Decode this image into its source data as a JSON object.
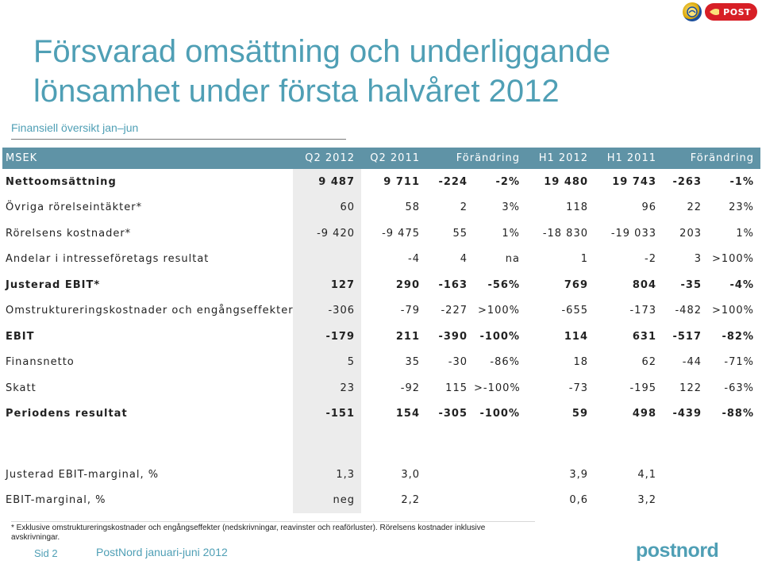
{
  "brand": {
    "post_logo_text": "POST"
  },
  "title": "Försvarad omsättning och underliggande lönsamhet under första halvåret 2012",
  "subtitle": "Finansiell översikt jan–jun",
  "table": {
    "headers": [
      "MSEK",
      "Q2 2012",
      "Q2 2011",
      "Förändring",
      "",
      "H1 2012",
      "H1 2011",
      "Förändring",
      ""
    ],
    "rows": [
      {
        "label": "Nettoomsättning",
        "bold": true,
        "cells": [
          "9 487",
          "9 711",
          "-224",
          "-2%",
          "19 480",
          "19 743",
          "-263",
          "-1%"
        ]
      },
      {
        "label": "Övriga rörelseintäkter*",
        "bold": false,
        "cells": [
          "60",
          "58",
          "2",
          "3%",
          "118",
          "96",
          "22",
          "23%"
        ]
      },
      {
        "label": "Rörelsens kostnader*",
        "bold": false,
        "cells": [
          "-9 420",
          "-9 475",
          "55",
          "1%",
          "-18 830",
          "-19 033",
          "203",
          "1%"
        ]
      },
      {
        "label": "Andelar i intresseföretags resultat",
        "bold": false,
        "cells": [
          "",
          "-4",
          "4",
          "na",
          "1",
          "-2",
          "3",
          ">100%"
        ]
      },
      {
        "label": "Justerad EBIT*",
        "bold": true,
        "cells": [
          "127",
          "290",
          "-163",
          "-56%",
          "769",
          "804",
          "-35",
          "-4%"
        ]
      },
      {
        "label": "Omstruktureringskostnader och engångseffekter",
        "bold": false,
        "cells": [
          "-306",
          "-79",
          "-227",
          ">100%",
          "-655",
          "-173",
          "-482",
          ">100%"
        ]
      },
      {
        "label": "EBIT",
        "bold": true,
        "cells": [
          "-179",
          "211",
          "-390",
          "-100%",
          "114",
          "631",
          "-517",
          "-82%"
        ]
      },
      {
        "label": "Finansnetto",
        "bold": false,
        "cells": [
          "5",
          "35",
          "-30",
          "-86%",
          "18",
          "62",
          "-44",
          "-71%"
        ]
      },
      {
        "label": "Skatt",
        "bold": false,
        "cells": [
          "23",
          "-92",
          "115",
          ">-100%",
          "-73",
          "-195",
          "122",
          "-63%"
        ]
      },
      {
        "label": "Periodens resultat",
        "bold": true,
        "cells": [
          "-151",
          "154",
          "-305",
          "-100%",
          "59",
          "498",
          "-439",
          "-88%"
        ]
      }
    ],
    "margin_rows": [
      {
        "label": "Justerad EBIT-marginal, %",
        "cells": [
          "1,3",
          "3,0",
          "",
          "",
          "3,9",
          "4,1",
          "",
          ""
        ]
      },
      {
        "label": "EBIT-marginal, %",
        "cells": [
          "neg",
          "2,2",
          "",
          "",
          "0,6",
          "3,2",
          "",
          ""
        ]
      }
    ]
  },
  "footnote": "* Exklusive omstruktureringskostnader och engångseffekter (nedskrivningar, reavinster och reaförluster). Rörelsens kostnader inklusive avskrivningar.",
  "footer": {
    "page": "Sid 2",
    "text": "PostNord januari-juni 2012",
    "logo": "postnord"
  }
}
